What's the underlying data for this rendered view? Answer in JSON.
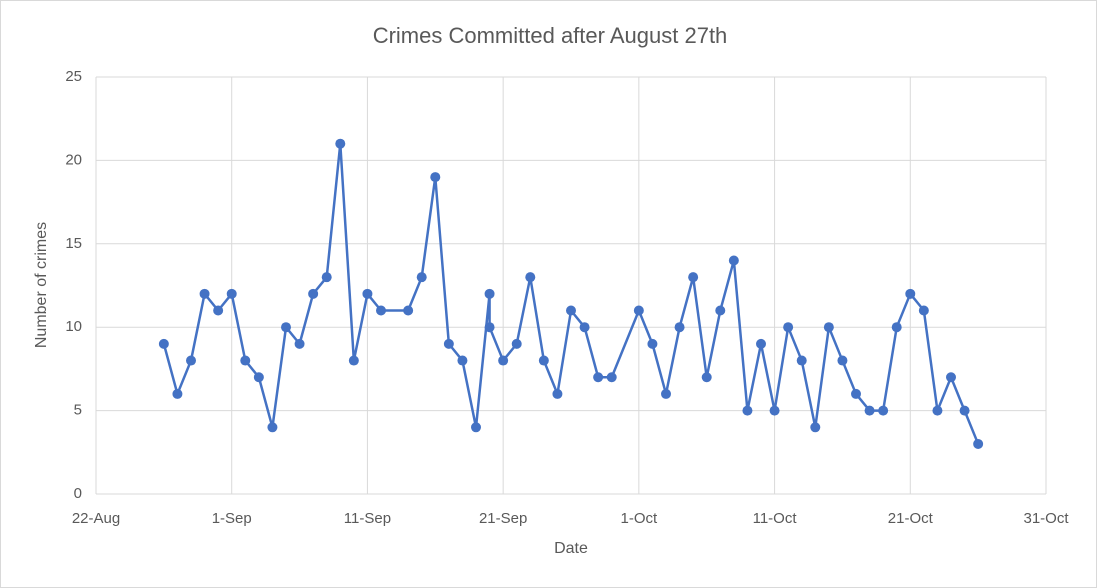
{
  "chart_data": {
    "type": "line",
    "title": "Crimes Committed after August 27th",
    "x_label": "Date",
    "y_label": "Number of crimes",
    "x": [
      "27-Aug",
      "28-Aug",
      "29-Aug",
      "30-Aug",
      "31-Aug",
      "1-Sep",
      "2-Sep",
      "3-Sep",
      "4-Sep",
      "5-Sep",
      "6-Sep",
      "7-Sep",
      "8-Sep",
      "9-Sep",
      "10-Sep",
      "11-Sep",
      "12-Sep",
      "14-Sep",
      "15-Sep",
      "16-Sep",
      "17-Sep",
      "18-Sep",
      "19-Sep",
      "20-Sep",
      "20-Sep",
      "21-Sep",
      "22-Sep",
      "23-Sep",
      "24-Sep",
      "25-Sep",
      "26-Sep",
      "27-Sep",
      "28-Sep",
      "29-Sep",
      "1-Oct",
      "2-Oct",
      "3-Oct",
      "4-Oct",
      "5-Oct",
      "6-Oct",
      "7-Oct",
      "8-Oct",
      "9-Oct",
      "10-Oct",
      "11-Oct",
      "12-Oct",
      "13-Oct",
      "14-Oct",
      "15-Oct",
      "16-Oct",
      "17-Oct",
      "18-Oct",
      "19-Oct",
      "20-Oct",
      "21-Oct",
      "22-Oct",
      "23-Oct",
      "24-Oct",
      "25-Oct",
      "26-Oct"
    ],
    "values": [
      9,
      6,
      8,
      12,
      11,
      12,
      8,
      7,
      4,
      10,
      9,
      12,
      13,
      21,
      8,
      12,
      11,
      11,
      13,
      19,
      9,
      8,
      4,
      12,
      10,
      8,
      9,
      13,
      8,
      6,
      11,
      10,
      7,
      7,
      11,
      9,
      6,
      10,
      13,
      7,
      11,
      14,
      5,
      9,
      5,
      10,
      8,
      4,
      10,
      8,
      6,
      5,
      5,
      10,
      12,
      11,
      5,
      7,
      5,
      3
    ],
    "color": "#4472c4",
    "xlim": [
      "22-Aug",
      "31-Oct"
    ],
    "xticks": [
      "22-Aug",
      "1-Sep",
      "11-Sep",
      "21-Sep",
      "1-Oct",
      "11-Oct",
      "21-Oct",
      "31-Oct"
    ],
    "ylim": [
      0,
      25
    ],
    "yticks": [
      0,
      5,
      10,
      15,
      20,
      25
    ],
    "grid": true
  }
}
